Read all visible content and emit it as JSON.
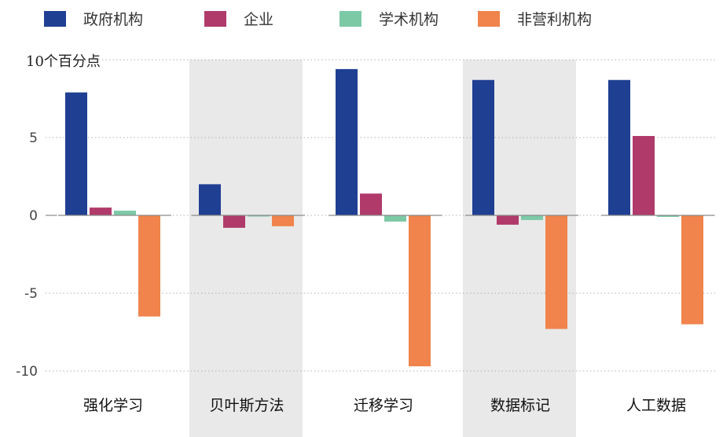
{
  "chart_data": {
    "type": "bar",
    "unit_label": "10个百分点",
    "categories": [
      "强化学习",
      "贝叶斯方法",
      "迁移学习",
      "数据标记",
      "人工数据"
    ],
    "series": [
      {
        "name": "政府机构",
        "color": "#1f3f93",
        "values": [
          7.9,
          2.0,
          9.4,
          8.7,
          8.7
        ]
      },
      {
        "name": "企业",
        "color": "#b03a6a",
        "values": [
          0.5,
          -0.8,
          1.4,
          -0.6,
          5.1
        ]
      },
      {
        "name": "学术机构",
        "color": "#7cc9a6",
        "values": [
          0.3,
          -0.05,
          -0.4,
          -0.3,
          -0.1
        ]
      },
      {
        "name": "非营利机构",
        "color": "#f0844c",
        "values": [
          -6.5,
          -0.7,
          -9.7,
          -7.3,
          -7.0
        ]
      }
    ],
    "yticks": [
      5,
      0,
      -5,
      -10
    ],
    "ylim": [
      -10.5,
      10
    ],
    "shaded_groups": [
      1,
      3
    ],
    "grid": true,
    "legend_position": "top"
  }
}
